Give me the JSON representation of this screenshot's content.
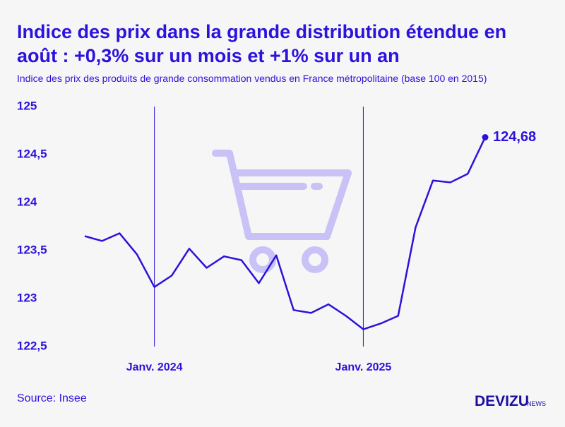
{
  "chart_data": {
    "type": "line",
    "title_lines": [
      "Indice des prix dans la grande distribution étendue en",
      "août : +0,3% sur un mois et +1% sur un an"
    ],
    "subtitle": "Indice des prix des produits de grande consommation vendus en France métropolitaine (base 100 en 2015)",
    "categories": [
      null,
      null,
      null,
      null,
      "Janv. 2024",
      null,
      null,
      null,
      null,
      null,
      null,
      null,
      null,
      null,
      null,
      null,
      "Janv. 2025",
      null,
      null,
      null,
      null,
      null,
      null,
      null
    ],
    "series": [
      {
        "name": "Indice des prix",
        "color": "#2b12dc",
        "values": [
          123.65,
          123.6,
          123.68,
          123.46,
          123.12,
          123.24,
          123.52,
          123.32,
          123.44,
          123.4,
          123.16,
          123.45,
          122.88,
          122.85,
          122.94,
          122.82,
          122.68,
          122.74,
          122.82,
          123.74,
          124.23,
          124.21,
          124.3,
          124.68
        ],
        "value_labels": [
          null,
          null,
          null,
          null,
          null,
          null,
          null,
          null,
          null,
          null,
          null,
          null,
          null,
          null,
          null,
          null,
          null,
          null,
          null,
          null,
          null,
          null,
          null,
          "124,68"
        ]
      }
    ],
    "ylim": [
      122.5,
      125
    ],
    "yticks": [
      {
        "value": 122.5,
        "label": "122,5"
      },
      123,
      {
        "value": 123.5,
        "label": "123,5"
      },
      124,
      {
        "value": 124.5,
        "label": "124,5"
      },
      125
    ],
    "source": "Source: Insee",
    "brand": "DEVIZU",
    "brand_suffix": "NEWS"
  }
}
